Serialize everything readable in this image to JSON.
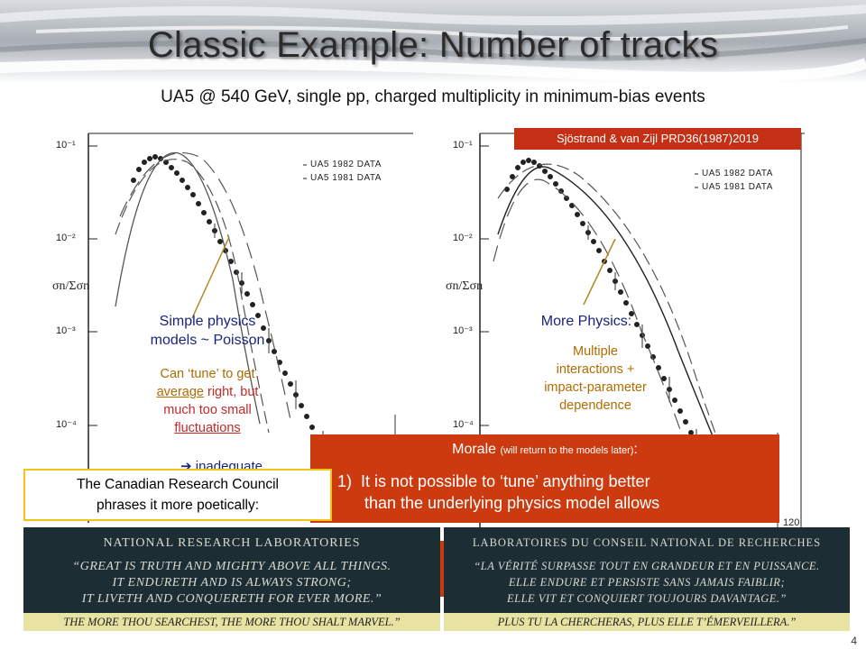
{
  "title": "Classic Example: Number of tracks",
  "subtitle": "UA5 @ 540 GeV, single pp, charged multiplicity in minimum-bias events",
  "reference": "Sjöstrand & van Zijl PRD36(1987)2019",
  "left_plot": {
    "y_label": "σn/Σσn",
    "y_ticks": [
      "10⁻¹",
      "10⁻²",
      "10⁻³",
      "10⁻⁴"
    ],
    "legend": [
      "UA5 1982 DATA",
      "UA5 1981 DATA"
    ],
    "annotation_title": [
      "Simple physics",
      "models ~ Poisson"
    ],
    "annotation_body_1": "Can ‘tune’ to get",
    "annotation_body_2a": "average",
    "annotation_body_2b": " right, but",
    "annotation_body_3": "much too small",
    "annotation_body_4": "fluctuations",
    "conclusion": "➔ inadequate"
  },
  "right_plot": {
    "y_label": "σn/Σσn",
    "y_ticks": [
      "10⁻¹",
      "10⁻²",
      "10⁻³",
      "10⁻⁴"
    ],
    "legend": [
      "UA5 1982 DATA",
      "UA5 1981 DATA"
    ],
    "x_tick_end": "120",
    "annotation_title": "More Physics:",
    "annotation_body": [
      "Multiple",
      "interactions +",
      "impact-parameter",
      "dependence"
    ]
  },
  "morale": {
    "heading": "Morale",
    "heading_note": "(will return to the models later)",
    "heading_colon": ":",
    "point1_num": "1)",
    "point1_line1": "It is not possible to ‘tune’ anything better",
    "point1_line2": "than the underlying physics model allows"
  },
  "canada_box": [
    "The Canadian Research Council",
    "phrases it more poetically:"
  ],
  "plaque_en": {
    "heading": "NATIONAL RESEARCH LABORATORIES",
    "lines": [
      "“GREAT IS TRUTH AND MIGHTY ABOVE ALL THINGS.",
      "IT ENDURETH AND IS ALWAYS STRONG;",
      "IT LIVETH AND CONQUERETH FOR EVER MORE.”"
    ],
    "band": "THE MORE THOU SEARCHEST, THE MORE THOU SHALT MARVEL.”"
  },
  "plaque_fr": {
    "heading": "LABORATOIRES DU CONSEIL NATIONAL DE RECHERCHES",
    "lines": [
      "“LA VÉRITÉ SURPASSE TOUT EN GRANDEUR ET EN PUISSANCE.",
      "ELLE ENDURE ET PERSISTE SANS JAMAIS FAIBLIR;",
      "ELLE VIT ET CONQUIERT TOUJOURS DAVANTAGE.”"
    ],
    "band": "PLUS TU LA CHERCHERAS, PLUS ELLE T’ÉMERVEILLERA.”"
  },
  "page_number": "4",
  "colors": {
    "banner_bg": "#c9cdd2",
    "accent_red": "#cc3a10",
    "annotation_blue": "#1a237e",
    "annotation_gold": "#b06c00",
    "plaque_bg": "#1c2e33",
    "plaque_band": "#e7e3a2"
  }
}
